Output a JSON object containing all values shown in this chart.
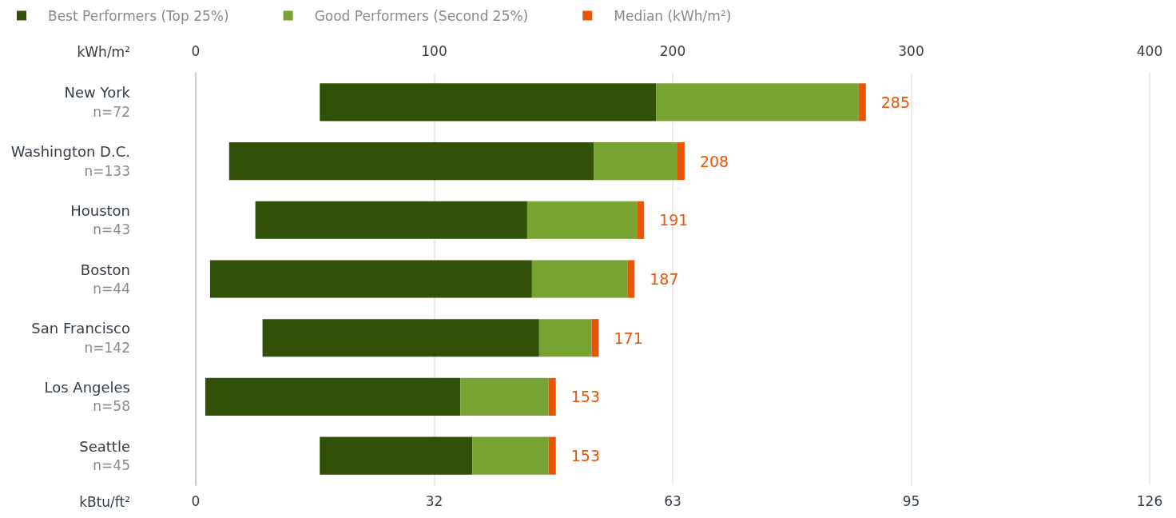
{
  "chart_data": {
    "type": "bar",
    "orientation": "horizontal",
    "categories": [
      "New York\nn=72",
      "Washington D.C.\nn=133",
      "Houston\nn=43",
      "Boston\nn=44",
      "San Francisco\nn=142",
      "Los Angeles\nn=58",
      "Seattle\nn=45"
    ],
    "series": [
      {
        "name": "Best Performers (Top 25%)",
        "color": "#325008",
        "base": [
          52,
          14,
          25,
          6,
          28,
          4,
          52
        ],
        "values": [
          141,
          153,
          114,
          135,
          116,
          107,
          64
        ]
      },
      {
        "name": "Good Performers (Second 25%)",
        "color": "#78a232",
        "base": [
          193,
          167,
          139,
          141,
          144,
          111,
          116
        ],
        "values": [
          85,
          35,
          46,
          40,
          22,
          37,
          32
        ]
      },
      {
        "name": "Median (kWh/m²)",
        "color": "#e95504",
        "base": [
          278,
          202,
          185,
          181,
          166,
          148,
          148
        ],
        "values": [
          3,
          3,
          3,
          3,
          3,
          3,
          3
        ]
      }
    ],
    "annotations": [
      "285",
      "208",
      "191",
      "187",
      "171",
      "153",
      "153"
    ],
    "xlabel": "kWh/m²",
    "xlim": [
      0,
      400
    ],
    "xticks": [
      0,
      100,
      200,
      300,
      400
    ],
    "x2label": "kBtu/ft²",
    "x2lim": [
      0,
      126.2
    ],
    "x2ticks": [
      0,
      {
        "value": 31.55,
        "label": "32"
      },
      {
        "value": 63.1,
        "label": "63"
      },
      {
        "value": 94.65,
        "label": "95"
      },
      {
        "value": 126.2,
        "label": "126"
      }
    ],
    "grid": "x",
    "legend": "top left"
  }
}
